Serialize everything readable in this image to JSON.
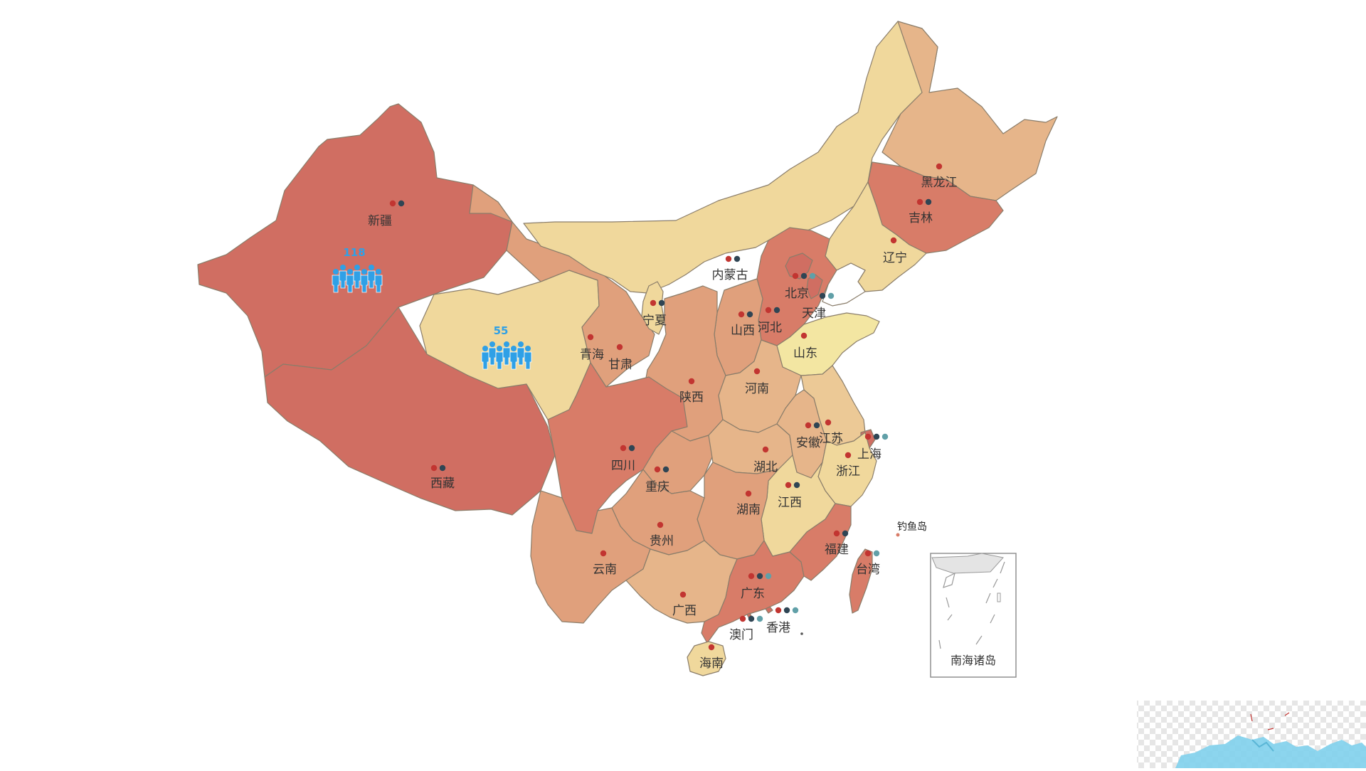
{
  "colors": {
    "very_high": "#d06e62",
    "high": "#d87c68",
    "medium_high": "#e0a07c",
    "medium": "#e6b58a",
    "medium_low": "#ecc996",
    "low": "#f0d89c",
    "very_low": "#f3e6a2",
    "marker_red": "#c23531",
    "marker_dark": "#2f4554",
    "marker_teal": "#61a0a8",
    "count_blue": "#2fa0e6"
  },
  "provinces": [
    {
      "id": "xinjiang",
      "label": "新疆",
      "level": "very_high",
      "markers": [
        "red",
        "dark"
      ]
    },
    {
      "id": "xizang",
      "label": "西藏",
      "level": "very_high",
      "markers": [
        "red",
        "dark"
      ]
    },
    {
      "id": "qinghai",
      "label": "青海",
      "level": "low",
      "markers": [
        "red"
      ]
    },
    {
      "id": "gansu",
      "label": "甘肃",
      "level": "medium_high",
      "markers": [
        "red"
      ]
    },
    {
      "id": "neimenggu",
      "label": "内蒙古",
      "level": "low",
      "markers": [
        "red",
        "dark"
      ]
    },
    {
      "id": "heilongjiang",
      "label": "黑龙江",
      "level": "medium",
      "markers": [
        "red"
      ]
    },
    {
      "id": "jilin",
      "label": "吉林",
      "level": "high",
      "markers": [
        "red",
        "dark"
      ]
    },
    {
      "id": "liaoning",
      "label": "辽宁",
      "level": "low",
      "markers": [
        "red"
      ]
    },
    {
      "id": "hebei",
      "label": "河北",
      "level": "high",
      "markers": [
        "red",
        "dark"
      ]
    },
    {
      "id": "beijing",
      "label": "北京",
      "level": "very_high",
      "markers": [
        "red",
        "dark",
        "teal"
      ]
    },
    {
      "id": "tianjin",
      "label": "天津",
      "level": "very_high",
      "markers": [
        "dark",
        "teal"
      ]
    },
    {
      "id": "shanxi",
      "label": "山西",
      "level": "medium_high",
      "markers": [
        "red",
        "dark"
      ]
    },
    {
      "id": "shandong",
      "label": "山东",
      "level": "very_low",
      "markers": [
        "red"
      ]
    },
    {
      "id": "ningxia",
      "label": "宁夏",
      "level": "low",
      "markers": [
        "red",
        "dark"
      ]
    },
    {
      "id": "shaanxi",
      "label": "陕西",
      "level": "medium_high",
      "markers": [
        "red"
      ]
    },
    {
      "id": "henan",
      "label": "河南",
      "level": "medium",
      "markers": [
        "red"
      ]
    },
    {
      "id": "sichuan",
      "label": "四川",
      "level": "high",
      "markers": [
        "red",
        "dark"
      ]
    },
    {
      "id": "chongqing",
      "label": "重庆",
      "level": "medium_high",
      "markers": [
        "red",
        "dark"
      ]
    },
    {
      "id": "hubei",
      "label": "湖北",
      "level": "medium",
      "markers": [
        "red"
      ]
    },
    {
      "id": "anhui",
      "label": "安徽",
      "level": "medium",
      "markers": [
        "red",
        "dark"
      ]
    },
    {
      "id": "jiangsu",
      "label": "江苏",
      "level": "medium_low",
      "markers": [
        "red"
      ]
    },
    {
      "id": "shanghai",
      "label": "上海",
      "level": "very_high",
      "markers": [
        "red",
        "dark",
        "teal"
      ]
    },
    {
      "id": "zhejiang",
      "label": "浙江",
      "level": "low",
      "markers": [
        "red"
      ]
    },
    {
      "id": "jiangxi",
      "label": "江西",
      "level": "low",
      "markers": [
        "red",
        "dark"
      ]
    },
    {
      "id": "hunan",
      "label": "湖南",
      "level": "medium_high",
      "markers": [
        "red"
      ]
    },
    {
      "id": "guizhou",
      "label": "贵州",
      "level": "medium_high",
      "markers": [
        "red"
      ]
    },
    {
      "id": "yunnan",
      "label": "云南",
      "level": "medium_high",
      "markers": [
        "red"
      ]
    },
    {
      "id": "guangxi",
      "label": "广西",
      "level": "medium",
      "markers": [
        "red"
      ]
    },
    {
      "id": "guangdong",
      "label": "广东",
      "level": "high",
      "markers": [
        "red",
        "dark",
        "teal"
      ]
    },
    {
      "id": "fujian",
      "label": "福建",
      "level": "high",
      "markers": [
        "red",
        "dark"
      ]
    },
    {
      "id": "taiwan",
      "label": "台湾",
      "level": "high",
      "markers": [
        "red",
        "teal"
      ]
    },
    {
      "id": "hainan",
      "label": "海南",
      "level": "low",
      "markers": [
        "red"
      ]
    },
    {
      "id": "xianggang",
      "label": "香港",
      "level": "very_high",
      "markers": [
        "red",
        "dark",
        "teal"
      ]
    },
    {
      "id": "aomen",
      "label": "澳门",
      "level": "very_high",
      "markers": [
        "red",
        "dark",
        "teal"
      ]
    }
  ],
  "people_markers": [
    {
      "id": "xinjiang-people",
      "count": "118",
      "icon": "people-group-icon"
    },
    {
      "id": "qinghai-people",
      "count": "55",
      "icon": "people-group-icon"
    }
  ],
  "islands": {
    "diaoyu": "钓鱼岛"
  },
  "south_sea_inset": {
    "label": "南海诸岛"
  }
}
